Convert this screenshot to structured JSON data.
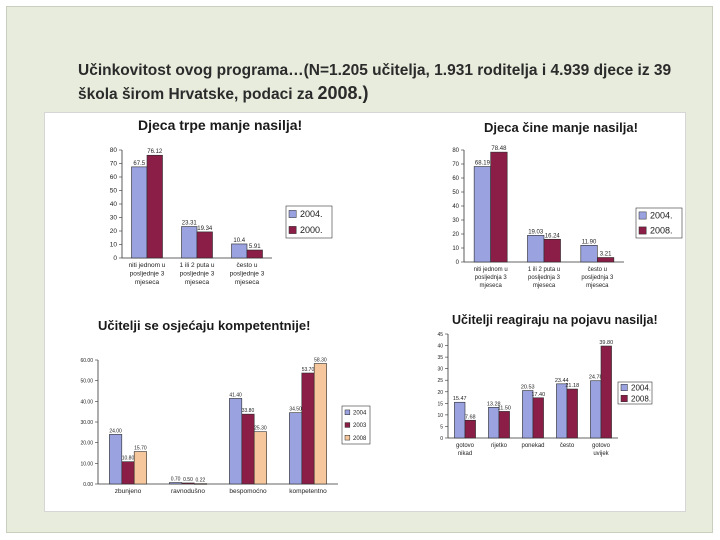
{
  "slide": {
    "title_main": "Učinkovitost ovog programa…(N=1.205 učitelja, 1.931 roditelja i 4.939 djece iz 39 škola širom Hrvatske, podaci za ",
    "title_year": "2008.)"
  },
  "colors": {
    "s2004": "#9aa2e0",
    "s2000": "#8b1e46",
    "s2003": "#8b1e46",
    "s2008": "#8b1e46",
    "s2008_comp": "#f6c79c",
    "border": "#2a2a2a"
  },
  "chart_data": [
    {
      "type": "bar",
      "title": "Djeca trpe manje nasilja!",
      "categories": [
        [
          "niti jednom u",
          "posljednje 3",
          "mjeseca"
        ],
        [
          "1 ili 2 puta u",
          "posljednje 3",
          "mjeseca"
        ],
        [
          "često u",
          "posljednje 3",
          "mjeseca"
        ]
      ],
      "series": [
        {
          "name": "2004.",
          "values": [
            67.5,
            23.31,
            10.4
          ],
          "labels": [
            "67.5",
            "23.31",
            "10.4"
          ]
        },
        {
          "name": "2000.",
          "values": [
            76.12,
            19.34,
            5.91
          ],
          "labels": [
            "76.12",
            "19.34",
            "5.91"
          ]
        }
      ],
      "yticks": [
        "0",
        "10",
        "20",
        "30",
        "40",
        "50",
        "60",
        "70",
        "80"
      ],
      "ylim": [
        0,
        80
      ],
      "grid": false,
      "legend": "right"
    },
    {
      "type": "bar",
      "title": "Djeca čine manje nasilja!",
      "categories": [
        [
          "niti jednom u",
          "posljednja 3",
          "mjeseca"
        ],
        [
          "1 ili 2 puta u",
          "posljednja 3",
          "mjeseca"
        ],
        [
          "često u",
          "posljednja 3",
          "mjeseca"
        ]
      ],
      "series": [
        {
          "name": "2004.",
          "values": [
            68.19,
            19.03,
            11.9
          ],
          "labels": [
            "68.19",
            "19.03",
            "11.90"
          ]
        },
        {
          "name": "2008.",
          "values": [
            78.48,
            16.24,
            3.21
          ],
          "labels": [
            "78.48",
            "16.24",
            "3.21"
          ]
        }
      ],
      "yticks": [
        "0",
        "10",
        "20",
        "30",
        "40",
        "50",
        "60",
        "70",
        "80"
      ],
      "ylim": [
        0,
        80
      ],
      "grid": false,
      "legend": "right"
    },
    {
      "type": "bar",
      "title": "Učitelji se osjećaju kompetentnije!",
      "categories": [
        [
          "zbunjeno"
        ],
        [
          "ravnodušno"
        ],
        [
          "bespomoćno"
        ],
        [
          "kompetentno"
        ]
      ],
      "series": [
        {
          "name": "2004",
          "values": [
            24.0,
            0.7,
            41.4,
            34.5
          ],
          "labels": [
            "24.00",
            "0.70",
            "41.40",
            "34.50"
          ]
        },
        {
          "name": "2003",
          "values": [
            10.8,
            0.5,
            33.8,
            53.7
          ],
          "labels": [
            "10.80",
            "0.50",
            "33.80",
            "53.70"
          ]
        },
        {
          "name": "2008",
          "values": [
            15.7,
            0.22,
            25.3,
            58.3
          ],
          "labels": [
            "15.70",
            "0.22",
            "25.30",
            "58.30"
          ]
        }
      ],
      "yticks": [
        "0.00",
        "10.00",
        "20.00",
        "30.00",
        "40.00",
        "50.00",
        "60.00"
      ],
      "ylim": [
        0,
        60
      ],
      "grid": false,
      "legend": "right"
    },
    {
      "type": "bar",
      "title": "Učitelji reagiraju na pojavu nasilja!",
      "categories": [
        [
          "gotovo",
          "nikad"
        ],
        [
          "rijetko"
        ],
        [
          "ponekad"
        ],
        [
          "često"
        ],
        [
          "gotovo",
          "uvijek"
        ]
      ],
      "series": [
        {
          "name": "2004.",
          "values": [
            15.47,
            13.28,
            20.53,
            23.44,
            24.78
          ],
          "labels": [
            "15.47",
            "13.28",
            "20.53",
            "23.44",
            "24.78"
          ]
        },
        {
          "name": "2008.",
          "values": [
            7.68,
            11.5,
            17.4,
            21.18,
            39.8
          ],
          "labels": [
            "7.68",
            "11.50",
            "17.40",
            "21.18",
            "39.80"
          ]
        }
      ],
      "yticks": [
        "0",
        "5",
        "10",
        "15",
        "20",
        "25",
        "30",
        "35",
        "40",
        "45"
      ],
      "ylim": [
        0,
        45
      ],
      "grid": false,
      "legend": "right"
    }
  ]
}
